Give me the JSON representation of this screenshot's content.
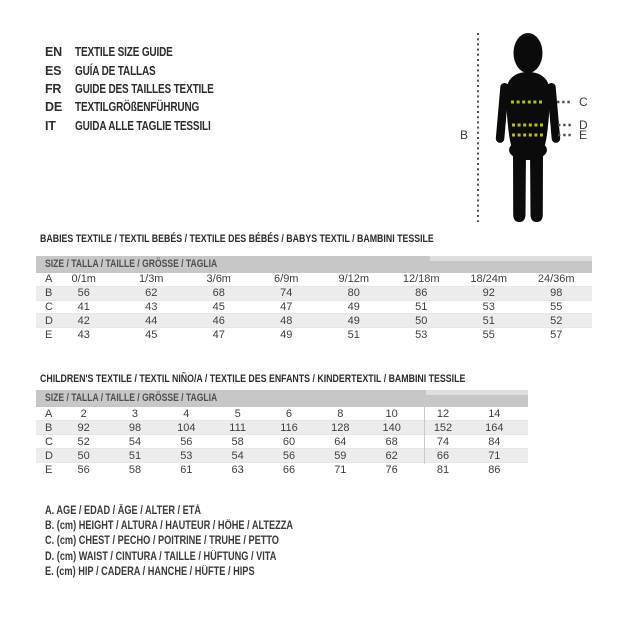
{
  "header": {
    "languages": [
      {
        "code": "EN",
        "title": "TEXTILE SIZE GUIDE"
      },
      {
        "code": "ES",
        "title": "GUÍA DE TALLAS"
      },
      {
        "code": "FR",
        "title": "GUIDE DES TAILLES TEXTILE"
      },
      {
        "code": "DE",
        "title": "TEXTILGRÖßENFÜHRUNG"
      },
      {
        "code": "IT",
        "title": "GUIDA ALLE TAGLIE TESSILI"
      }
    ]
  },
  "figure": {
    "labels": {
      "height": "B",
      "chest": "C",
      "waist": "D",
      "hip": "E"
    },
    "colors": {
      "silhouette": "#0b0b0b",
      "measure_line_on_body": "#b5c408",
      "measure_line_off_body": "#4e4e4e"
    }
  },
  "babies_table": {
    "section_title": "BABIES TEXTILE / TEXTIL BEBÉS / TEXTILE DES BÉBÉS / BABYS TEXTIL / BAMBINI TESSILE",
    "header": "SIZE / TALLA / TAILLE / GRÖSSE / TAGLIA",
    "rows": [
      {
        "label": "A",
        "values": [
          "0/1m",
          "1/3m",
          "3/6m",
          "6/9m",
          "9/12m",
          "12/18m",
          "18/24m",
          "24/36m"
        ]
      },
      {
        "label": "B",
        "values": [
          "56",
          "62",
          "68",
          "74",
          "80",
          "86",
          "92",
          "98"
        ]
      },
      {
        "label": "C",
        "values": [
          "41",
          "43",
          "45",
          "47",
          "49",
          "51",
          "53",
          "55"
        ]
      },
      {
        "label": "D",
        "values": [
          "42",
          "44",
          "46",
          "48",
          "49",
          "50",
          "51",
          "52"
        ]
      },
      {
        "label": "E",
        "values": [
          "43",
          "45",
          "47",
          "49",
          "51",
          "53",
          "55",
          "57"
        ]
      }
    ]
  },
  "children_table": {
    "section_title": "CHILDREN'S TEXTILE / TEXTIL NIÑO/A / TEXTILE DES ENFANTS / KINDERTEXTIL / BAMBINI TESSILE",
    "header": "SIZE / TALLA / TAILLE / GRÖSSE / TAGLIA",
    "rows": [
      {
        "label": "A",
        "values": [
          "2",
          "3",
          "4",
          "5",
          "6",
          "8",
          "10",
          "12",
          "14"
        ]
      },
      {
        "label": "B",
        "values": [
          "92",
          "98",
          "104",
          "111",
          "116",
          "128",
          "140",
          "152",
          "164"
        ]
      },
      {
        "label": "C",
        "values": [
          "52",
          "54",
          "56",
          "58",
          "60",
          "64",
          "68",
          "74",
          "84"
        ]
      },
      {
        "label": "D",
        "values": [
          "50",
          "51",
          "53",
          "54",
          "56",
          "59",
          "62",
          "66",
          "71"
        ]
      },
      {
        "label": "E",
        "values": [
          "56",
          "58",
          "61",
          "63",
          "66",
          "71",
          "76",
          "81",
          "86"
        ]
      }
    ]
  },
  "legend": {
    "items": [
      "A. AGE / EDAD / ÂGE / ALTER / ETÀ",
      "B. (cm) HEIGHT / ALTURA / HAUTEUR / HÖHE / ALTEZZA",
      "C. (cm) CHEST / PECHO / POITRINE / TRUHE / PETTO",
      "D. (cm) WAIST / CINTURA / TAILLE / HÜFTUNG / VITA",
      "E. (cm) HIP / CADERA / HANCHE / HÜFTE / HIPS"
    ]
  },
  "colors": {
    "accent_lime": "#b5c408",
    "table_header_gray": "#c7c7c7",
    "row_stripe_gray": "#ececec",
    "text_dark": "#2d2d2d"
  }
}
